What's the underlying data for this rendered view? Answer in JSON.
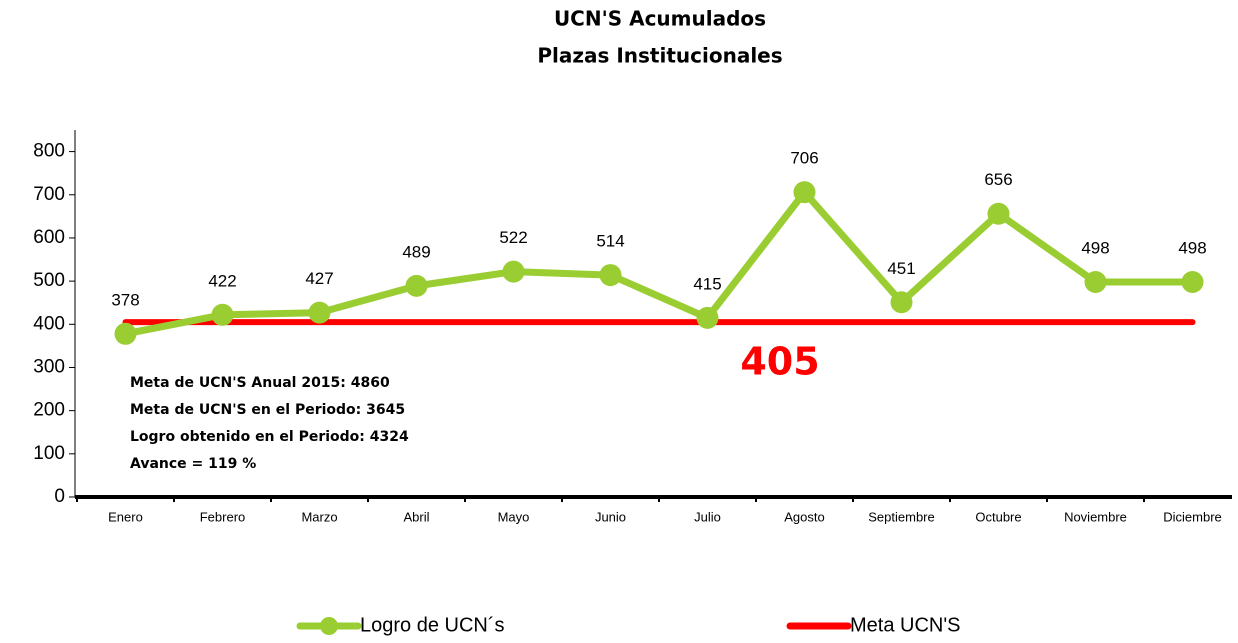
{
  "chart_data": {
    "type": "line",
    "title": [
      "UCN'S Acumulados",
      "Plazas Institucionales"
    ],
    "categories": [
      "Enero",
      "Febrero",
      "Marzo",
      "Abril",
      "Mayo",
      "Junio",
      "Julio",
      "Agosto",
      "Septiembre",
      "Octubre",
      "Noviembre",
      "Diciembre"
    ],
    "series": [
      {
        "name": "Logro de UCN´s",
        "color": "#9acd32",
        "marker": true,
        "data_labels": true,
        "values": [
          378,
          422,
          427,
          489,
          522,
          514,
          415,
          706,
          451,
          656,
          498,
          498
        ]
      },
      {
        "name": "Meta UCN'S",
        "color": "#ff0000",
        "marker": false,
        "data_labels": false,
        "values": [
          405,
          405,
          405,
          405,
          405,
          405,
          405,
          405,
          405,
          405,
          405,
          405
        ]
      }
    ],
    "annotations": [
      "Meta de UCN'S Anual 2015: 4860",
      "Meta de UCN'S en el Periodo: 3645",
      "Logro obtenido en el Periodo: 4324",
      "Avance = 119 %",
      "405"
    ],
    "ylim": [
      0,
      850
    ],
    "yticks": [
      0,
      100,
      200,
      300,
      400,
      500,
      600,
      700,
      800
    ],
    "grid": false,
    "legend": "bottom"
  }
}
